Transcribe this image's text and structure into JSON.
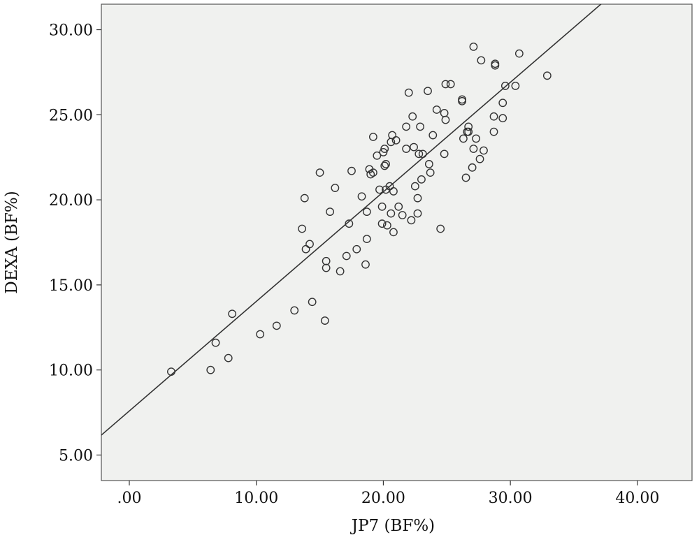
{
  "chart_data": {
    "type": "scatter",
    "xlabel": "JP7 (BF%)",
    "ylabel": "DEXA (BF%)",
    "xlim": [
      -2.2,
      44.3
    ],
    "ylim": [
      3.5,
      31.5
    ],
    "x_ticks": [
      {
        "value": 0,
        "label": ".00"
      },
      {
        "value": 10,
        "label": "10.00"
      },
      {
        "value": 20,
        "label": "20.00"
      },
      {
        "value": 30,
        "label": "30.00"
      },
      {
        "value": 40,
        "label": "40.00"
      }
    ],
    "y_ticks": [
      {
        "value": 5,
        "label": "5.00"
      },
      {
        "value": 10,
        "label": "10.00"
      },
      {
        "value": 15,
        "label": "15.00"
      },
      {
        "value": 20,
        "label": "20.00"
      },
      {
        "value": 25,
        "label": "25.00"
      },
      {
        "value": 30,
        "label": "30.00"
      }
    ],
    "grid": false,
    "background_color": "#f0f1ef",
    "marker_color": "#333333",
    "fit_line": {
      "slope": 0.644,
      "intercept": 7.59,
      "color": "#333333"
    },
    "points": [
      {
        "x": 3.3,
        "y": 9.9
      },
      {
        "x": 6.4,
        "y": 10.0
      },
      {
        "x": 6.8,
        "y": 11.6
      },
      {
        "x": 7.8,
        "y": 10.7
      },
      {
        "x": 8.1,
        "y": 13.3
      },
      {
        "x": 10.3,
        "y": 12.1
      },
      {
        "x": 11.6,
        "y": 12.6
      },
      {
        "x": 13.0,
        "y": 13.5
      },
      {
        "x": 14.4,
        "y": 14.0
      },
      {
        "x": 15.4,
        "y": 12.9
      },
      {
        "x": 13.6,
        "y": 18.3
      },
      {
        "x": 13.8,
        "y": 20.1
      },
      {
        "x": 13.9,
        "y": 17.1
      },
      {
        "x": 14.2,
        "y": 17.4
      },
      {
        "x": 15.0,
        "y": 21.6
      },
      {
        "x": 15.5,
        "y": 16.4
      },
      {
        "x": 15.5,
        "y": 16.0
      },
      {
        "x": 15.8,
        "y": 19.3
      },
      {
        "x": 16.2,
        "y": 20.7
      },
      {
        "x": 16.6,
        "y": 15.8
      },
      {
        "x": 17.1,
        "y": 16.7
      },
      {
        "x": 17.3,
        "y": 18.6
      },
      {
        "x": 17.5,
        "y": 21.7
      },
      {
        "x": 17.9,
        "y": 17.1
      },
      {
        "x": 18.3,
        "y": 20.2
      },
      {
        "x": 18.6,
        "y": 16.2
      },
      {
        "x": 18.7,
        "y": 17.7
      },
      {
        "x": 18.7,
        "y": 19.3
      },
      {
        "x": 18.9,
        "y": 21.8
      },
      {
        "x": 19.0,
        "y": 21.5
      },
      {
        "x": 19.2,
        "y": 21.6
      },
      {
        "x": 19.2,
        "y": 23.7
      },
      {
        "x": 19.5,
        "y": 22.6
      },
      {
        "x": 19.7,
        "y": 20.6
      },
      {
        "x": 19.9,
        "y": 19.6
      },
      {
        "x": 19.9,
        "y": 18.6
      },
      {
        "x": 20.0,
        "y": 22.8
      },
      {
        "x": 20.1,
        "y": 22.0
      },
      {
        "x": 20.1,
        "y": 23.0
      },
      {
        "x": 20.2,
        "y": 22.1
      },
      {
        "x": 20.2,
        "y": 20.6
      },
      {
        "x": 20.3,
        "y": 18.5
      },
      {
        "x": 20.5,
        "y": 20.8
      },
      {
        "x": 20.6,
        "y": 19.2
      },
      {
        "x": 20.6,
        "y": 23.4
      },
      {
        "x": 20.7,
        "y": 23.8
      },
      {
        "x": 20.8,
        "y": 20.5
      },
      {
        "x": 20.8,
        "y": 18.1
      },
      {
        "x": 21.0,
        "y": 23.5
      },
      {
        "x": 21.2,
        "y": 19.6
      },
      {
        "x": 21.5,
        "y": 19.1
      },
      {
        "x": 21.8,
        "y": 24.3
      },
      {
        "x": 21.8,
        "y": 23.0
      },
      {
        "x": 22.0,
        "y": 26.3
      },
      {
        "x": 22.2,
        "y": 18.8
      },
      {
        "x": 22.3,
        "y": 24.9
      },
      {
        "x": 22.4,
        "y": 23.1
      },
      {
        "x": 22.5,
        "y": 20.8
      },
      {
        "x": 22.7,
        "y": 20.1
      },
      {
        "x": 22.7,
        "y": 19.2
      },
      {
        "x": 22.8,
        "y": 22.7
      },
      {
        "x": 22.9,
        "y": 24.3
      },
      {
        "x": 23.0,
        "y": 21.2
      },
      {
        "x": 23.1,
        "y": 22.7
      },
      {
        "x": 23.5,
        "y": 26.4
      },
      {
        "x": 23.6,
        "y": 22.1
      },
      {
        "x": 23.7,
        "y": 21.6
      },
      {
        "x": 23.9,
        "y": 23.8
      },
      {
        "x": 24.2,
        "y": 25.3
      },
      {
        "x": 24.5,
        "y": 18.3
      },
      {
        "x": 24.8,
        "y": 22.7
      },
      {
        "x": 24.8,
        "y": 25.1
      },
      {
        "x": 24.9,
        "y": 24.7
      },
      {
        "x": 24.9,
        "y": 26.8
      },
      {
        "x": 25.3,
        "y": 26.8
      },
      {
        "x": 26.2,
        "y": 25.8
      },
      {
        "x": 26.2,
        "y": 25.9
      },
      {
        "x": 26.3,
        "y": 23.6
      },
      {
        "x": 26.5,
        "y": 21.3
      },
      {
        "x": 26.6,
        "y": 24.0
      },
      {
        "x": 26.7,
        "y": 24.0
      },
      {
        "x": 26.7,
        "y": 24.3
      },
      {
        "x": 27.0,
        "y": 21.9
      },
      {
        "x": 27.1,
        "y": 23.0
      },
      {
        "x": 27.1,
        "y": 29.0
      },
      {
        "x": 27.3,
        "y": 23.6
      },
      {
        "x": 27.6,
        "y": 22.4
      },
      {
        "x": 27.7,
        "y": 28.2
      },
      {
        "x": 27.9,
        "y": 22.9
      },
      {
        "x": 28.7,
        "y": 24.9
      },
      {
        "x": 28.7,
        "y": 24.0
      },
      {
        "x": 28.8,
        "y": 27.9
      },
      {
        "x": 28.8,
        "y": 28.0
      },
      {
        "x": 29.4,
        "y": 25.7
      },
      {
        "x": 29.4,
        "y": 24.8
      },
      {
        "x": 29.6,
        "y": 26.7
      },
      {
        "x": 30.4,
        "y": 26.7
      },
      {
        "x": 30.7,
        "y": 28.6
      },
      {
        "x": 32.9,
        "y": 27.3
      }
    ]
  }
}
